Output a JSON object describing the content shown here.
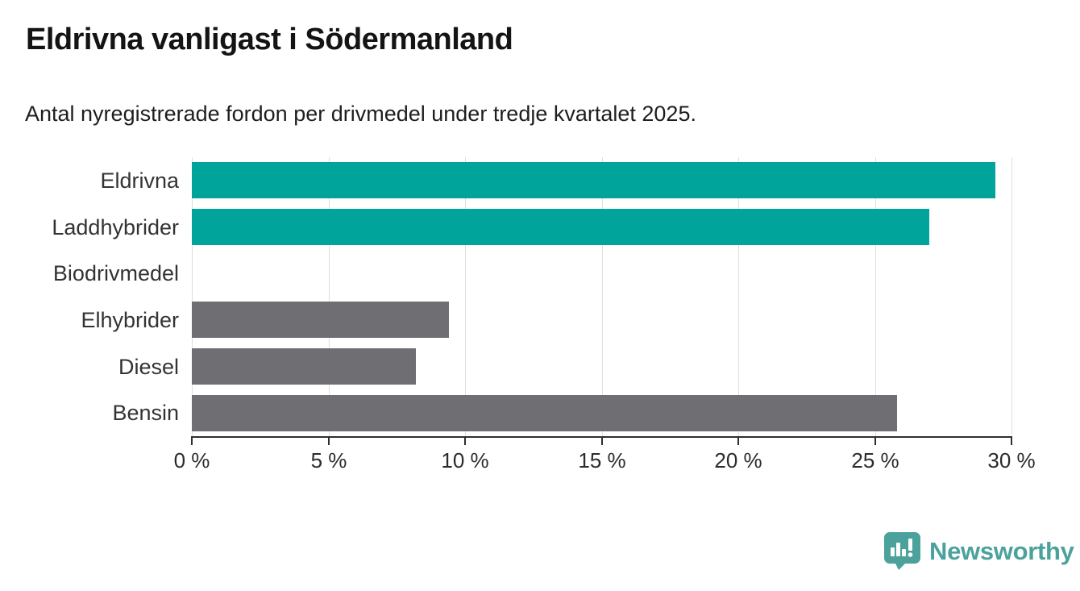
{
  "header": {
    "title": "Eldrivna vanligast i Södermanland",
    "subtitle": "Antal nyregistrerade fordon per drivmedel under tredje kvartalet 2025."
  },
  "chart_data": {
    "type": "bar",
    "orientation": "horizontal",
    "title": "Eldrivna vanligast i Södermanland",
    "subtitle": "Antal nyregistrerade fordon per drivmedel under tredje kvartalet 2025.",
    "categories": [
      "Eldrivna",
      "Laddhybrider",
      "Biodrivmedel",
      "Elhybrider",
      "Diesel",
      "Bensin"
    ],
    "values": [
      29.4,
      27.0,
      0,
      9.4,
      8.2,
      25.8
    ],
    "unit": "%",
    "bar_colors": [
      "#00a49b",
      "#00a49b",
      "#6e6e73",
      "#6e6e73",
      "#6e6e73",
      "#6e6e73"
    ],
    "xlabel": "",
    "ylabel": "",
    "xlim": [
      0,
      30
    ],
    "x_tick_values": [
      0,
      5,
      10,
      15,
      20,
      25,
      30
    ],
    "x_tick_labels": [
      "0 %",
      "5 %",
      "10 %",
      "15 %",
      "20 %",
      "25 %",
      "30 %"
    ],
    "grid": true,
    "legend": "none"
  },
  "colors": {
    "highlight": "#00a49b",
    "neutral": "#6e6e73",
    "gridline": "#dedede",
    "axis": "#2f2f2f",
    "brand": "#4ba29c"
  },
  "branding": {
    "logo_text": "Newsworthy",
    "logo_icon": "speech-bubble-bar-chart-icon"
  }
}
